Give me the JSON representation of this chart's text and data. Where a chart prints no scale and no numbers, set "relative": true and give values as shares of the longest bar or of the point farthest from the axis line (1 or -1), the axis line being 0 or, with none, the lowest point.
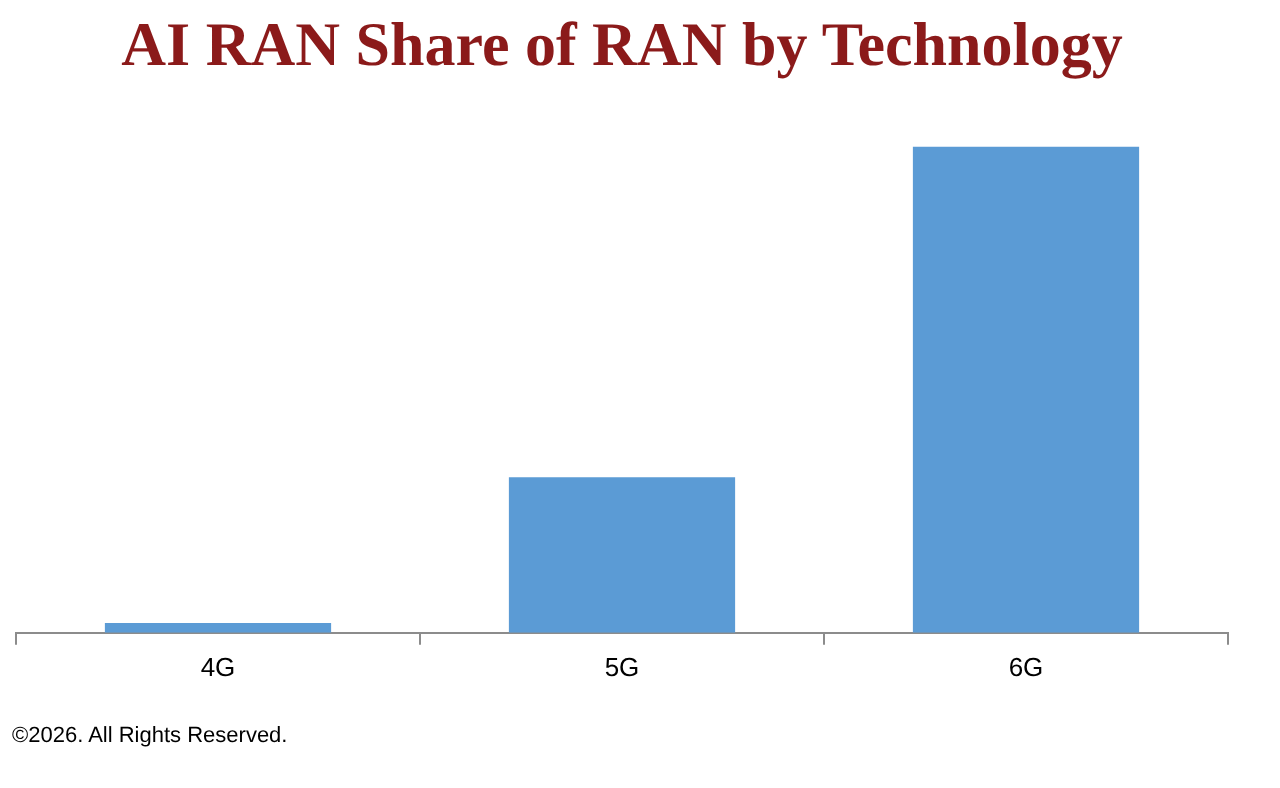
{
  "chart_data": {
    "type": "bar",
    "title": "AI RAN Share of RAN by Technology",
    "categories": [
      "4G",
      "5G",
      "6G"
    ],
    "values": [
      0.02,
      0.32,
      1
    ],
    "color": "#5b9bd5",
    "relative": true,
    "grid": false,
    "legend": false,
    "annotations": [
      "©2026. All Rights Reserved."
    ]
  }
}
